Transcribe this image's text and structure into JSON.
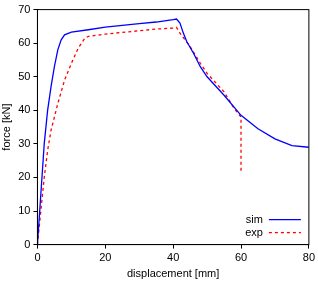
{
  "chart_data": {
    "type": "line",
    "x_label": "displacement [mm]",
    "y_label": "force [kN]",
    "xlim": [
      0,
      80
    ],
    "xticks": [
      0,
      20,
      40,
      60,
      80
    ],
    "ylim": [
      0,
      70
    ],
    "yticks": [
      0,
      10,
      20,
      30,
      40,
      50,
      60,
      70
    ],
    "grid": false,
    "legend": "lower right",
    "series": [
      {
        "name": "sim",
        "color": "#0000ff",
        "line_style": "solid",
        "x": [
          0,
          1,
          2,
          3,
          4,
          5,
          6,
          7,
          8,
          10,
          15,
          20,
          25,
          30,
          35,
          40,
          41,
          42,
          43,
          44,
          46,
          48,
          50,
          55,
          60,
          65,
          70,
          75,
          80
        ],
        "values": [
          0,
          15,
          30,
          40,
          47,
          53,
          58,
          61,
          62.5,
          63.3,
          64,
          64.8,
          65.3,
          65.8,
          66.3,
          67,
          67.2,
          66,
          63,
          60.5,
          57,
          53,
          50,
          44.5,
          38.5,
          34.5,
          31.5,
          29.5,
          29
        ]
      },
      {
        "name": "exp",
        "color": "#ff0000",
        "line_style": "dashed",
        "x": [
          0,
          1,
          2,
          3,
          4,
          6,
          8,
          10,
          12,
          14,
          15,
          20,
          25,
          30,
          35,
          40,
          41,
          42,
          45,
          48,
          50,
          55,
          58,
          60,
          60
        ],
        "values": [
          0,
          10,
          20,
          28,
          34,
          42,
          49,
          54,
          58.5,
          61.5,
          62,
          62.7,
          63.2,
          63.7,
          64.2,
          64.5,
          64.7,
          63,
          59,
          54,
          51,
          45.5,
          40.5,
          38,
          22
        ]
      }
    ]
  }
}
